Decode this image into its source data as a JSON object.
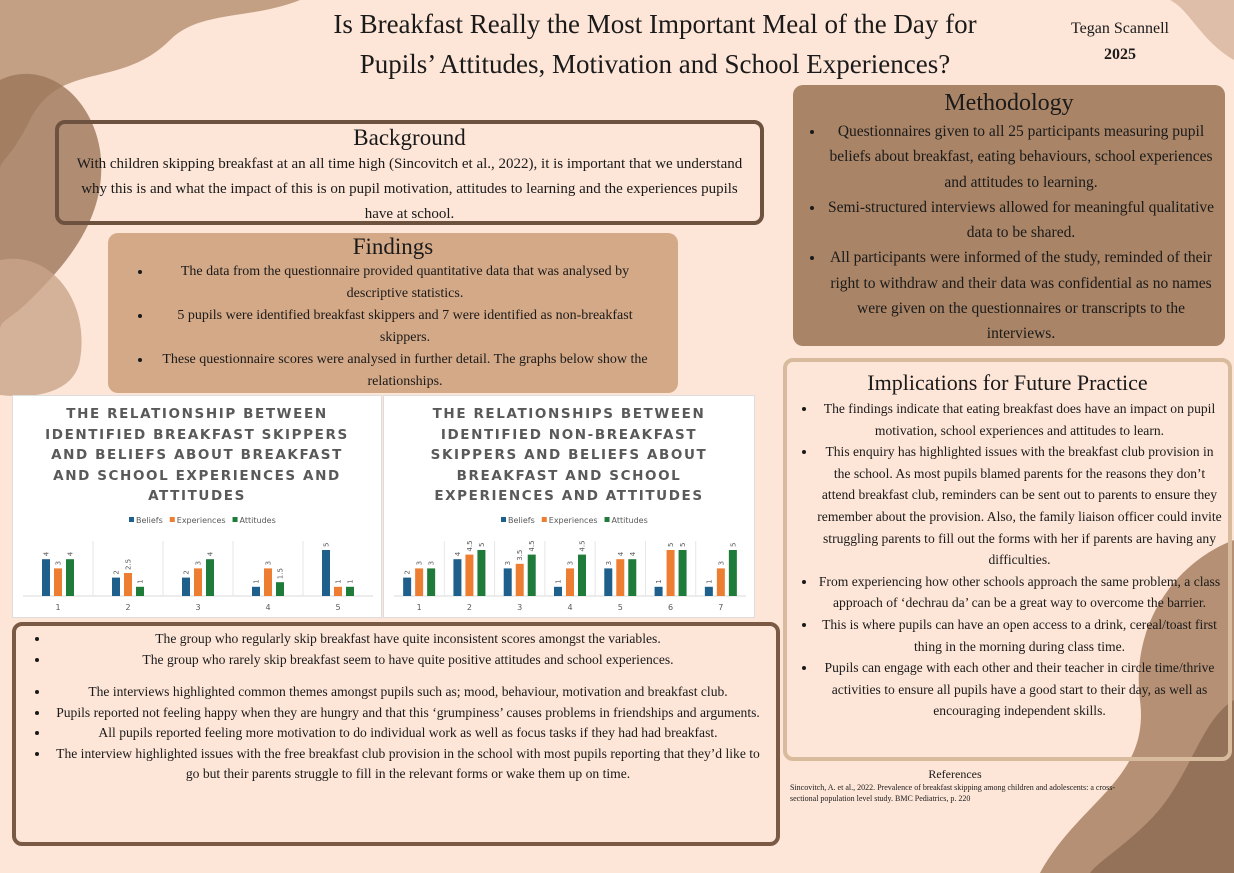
{
  "title": "Is Breakfast Really the Most Important Meal of the Day for Pupils’ Attitudes, Motivation and School Experiences?",
  "author": "Tegan Scannell",
  "year": "2025",
  "background": {
    "heading": "Background",
    "text": "With children skipping breakfast at an all time high (Sincovitch et al., 2022), it is important that we understand why this is and what the impact of this is on pupil motivation, attitudes to learning and the experiences pupils have at school."
  },
  "findings": {
    "heading": "Findings",
    "items": [
      "The data from the questionnaire provided quantitative data that was analysed by descriptive statistics.",
      "5 pupils were identified breakfast skippers and 7 were identified as non-breakfast skippers.",
      "These questionnaire scores were analysed in further detail. The graphs below show the relationships."
    ]
  },
  "methodology": {
    "heading": "Methodology",
    "items": [
      "Questionnaires  given to all 25 participants  measuring pupil beliefs about breakfast, eating behaviours, school experiences and attitudes to learning.",
      "Semi-structured interviews allowed for meaningful qualitative data to be shared.",
      "All participants were informed of the study, reminded of their right to withdraw and their data was confidential as no names were given on the questionnaires or transcripts to the interviews."
    ]
  },
  "implications": {
    "heading": "Implications for Future Practice",
    "items": [
      "The findings indicate that eating breakfast does have an impact on pupil motivation, school experiences and attitudes to learn.",
      "This enquiry has highlighted issues with the breakfast club provision in the school. As most pupils blamed parents for the reasons they don’t attend breakfast club, reminders can be sent out to parents to ensure they remember about the provision. Also, the family liaison officer could invite struggling parents to fill out the forms with her if parents are having any difficulties.",
      "From experiencing how other schools approach the same problem, a class approach of ‘dechrau da’ can be a great way to overcome the barrier.",
      "This is where pupils can have an open access to a drink, cereal/toast first thing in the morning during class time.",
      "Pupils can engage with each other and their teacher in circle time/thrive activities to ensure all pupils have a good start to their day, as well as encouraging independent skills."
    ]
  },
  "discussion": {
    "items": [
      "The group who regularly skip breakfast have quite inconsistent scores amongst the variables.",
      "The group who rarely skip breakfast seem to have quite positive attitudes and school experiences.",
      "The interviews highlighted common themes amongst pupils such as; mood, behaviour, motivation and breakfast club.",
      "Pupils reported not feeling happy when they are hungry and that this ‘grumpiness’ causes problems in friendships and arguments.",
      "All pupils reported feeling more motivation to do individual work as well as focus tasks if they had had breakfast.",
      "The interview highlighted issues with the free breakfast club provision in the school with most pupils reporting that they’d like to go but their parents struggle to fill in the relevant forms or wake them up on time."
    ]
  },
  "references": {
    "heading": "References",
    "text": "Sincovitch, A. et al., 2022. Prevalence of breakfast skipping among children and adolescents: a cross-sectional population level study. BMC Pediatrics, p. 220"
  },
  "chart_data": [
    {
      "type": "bar",
      "title": "THE RELATIONSHIP BETWEEN IDENTIFIED BREAKFAST SKIPPERS AND BELIEFS ABOUT BREAKFAST AND SCHOOL EXPERIENCES AND ATTITUDES",
      "categories": [
        "1",
        "2",
        "3",
        "4",
        "5"
      ],
      "ylim": [
        0,
        5
      ],
      "series": [
        {
          "name": "Beliefs",
          "color": "#1f5f8b",
          "values": [
            4,
            2,
            2,
            1,
            5
          ]
        },
        {
          "name": "Experiences",
          "color": "#ed7d31",
          "values": [
            3,
            2.5,
            3,
            3,
            1
          ]
        },
        {
          "name": "Attitudes",
          "color": "#1e7b3a",
          "values": [
            4,
            1,
            4,
            1.5,
            1
          ]
        }
      ]
    },
    {
      "type": "bar",
      "title": "THE RELATIONSHIPS BETWEEN IDENTIFIED NON-BREAKFAST SKIPPERS AND BELIEFS ABOUT BREAKFAST AND SCHOOL EXPERIENCES AND ATTITUDES",
      "categories": [
        "1",
        "2",
        "3",
        "4",
        "5",
        "6",
        "7"
      ],
      "ylim": [
        0,
        5
      ],
      "series": [
        {
          "name": "Beliefs",
          "color": "#1f5f8b",
          "values": [
            2,
            4,
            3,
            1,
            3,
            1,
            1
          ]
        },
        {
          "name": "Experiences",
          "color": "#ed7d31",
          "values": [
            3,
            4.5,
            3.5,
            3,
            4,
            5,
            3
          ]
        },
        {
          "name": "Attitudes",
          "color": "#1e7b3a",
          "values": [
            3,
            5,
            4.5,
            4.5,
            4,
            5,
            5
          ]
        }
      ]
    }
  ]
}
